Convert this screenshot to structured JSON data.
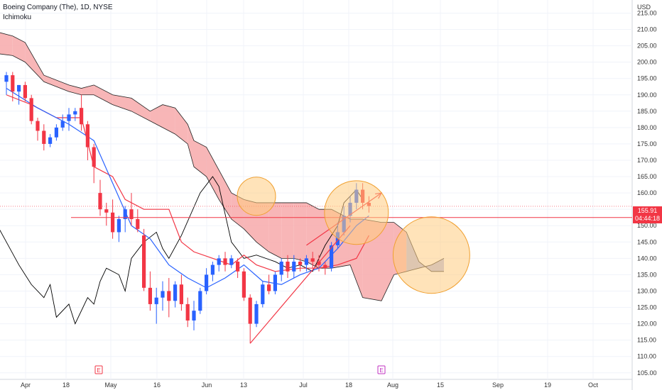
{
  "header": {
    "title": "Boeing Company (The), 1D, NYSE",
    "indicator": "Ichimoku"
  },
  "axis": {
    "currency": "USD"
  },
  "price_label": {
    "price": "155.91",
    "countdown": "04:44:18"
  },
  "earnings_marker": "E",
  "colors": {
    "up": "#2962ff",
    "down": "#f23645",
    "cloud_bear": "#f7a9aa",
    "cloud_bull": "#aab4e6",
    "conversion": "#2962ff",
    "base": "#f23645",
    "lagging": "#000000",
    "highlight": "#ffcc80",
    "highlight_stroke": "#f0a030",
    "hline": "#f23645",
    "trend": "#f23645"
  },
  "chart_data": {
    "type": "candlestick",
    "title": "Boeing Company (The), 1D, NYSE",
    "ylim": [
      103,
      219
    ],
    "y_ticks": [
      "105.00",
      "110.00",
      "115.00",
      "120.00",
      "125.00",
      "130.00",
      "135.00",
      "140.00",
      "145.00",
      "150.00",
      "155.00",
      "160.00",
      "165.00",
      "170.00",
      "175.00",
      "180.00",
      "185.00",
      "190.00",
      "195.00",
      "200.00",
      "205.00",
      "210.00",
      "215.00"
    ],
    "x_ticks": [
      "Apr",
      "18",
      "May",
      "16",
      "Jun",
      "13",
      "Jul",
      "18",
      "Aug",
      "15",
      "Sep",
      "19",
      "Oct"
    ],
    "candles": [
      [
        194,
        197,
        190,
        196
      ],
      [
        196,
        197,
        188,
        191
      ],
      [
        191,
        193,
        187,
        193
      ],
      [
        193,
        194,
        188,
        189
      ],
      [
        189,
        190,
        181,
        182
      ],
      [
        182,
        183,
        176,
        179
      ],
      [
        179,
        181,
        173,
        175
      ],
      [
        175,
        178,
        174,
        177
      ],
      [
        177,
        181,
        176,
        180
      ],
      [
        180,
        184,
        179,
        182
      ],
      [
        182,
        186,
        179,
        184
      ],
      [
        184,
        186,
        182,
        185
      ],
      [
        186,
        190,
        179,
        181
      ],
      [
        181,
        182,
        170,
        174
      ],
      [
        174,
        175,
        163,
        168
      ],
      [
        160,
        164,
        153,
        155
      ],
      [
        155,
        157,
        150,
        154
      ],
      [
        154,
        158,
        146,
        148
      ],
      [
        148,
        153,
        145,
        152
      ],
      [
        152,
        156,
        148,
        155
      ],
      [
        155,
        160,
        150,
        152
      ],
      [
        152,
        155,
        148,
        149
      ],
      [
        147,
        149,
        130,
        131
      ],
      [
        131,
        136,
        124,
        126
      ],
      [
        126,
        131,
        120,
        128
      ],
      [
        128,
        133,
        124,
        130
      ],
      [
        130,
        134,
        122,
        127
      ],
      [
        127,
        133,
        125,
        132
      ],
      [
        132,
        135,
        124,
        126
      ],
      [
        126,
        128,
        119,
        121
      ],
      [
        121,
        127,
        118,
        124
      ],
      [
        124,
        131,
        123,
        130
      ],
      [
        130,
        137,
        129,
        135
      ],
      [
        135,
        139,
        133,
        138
      ],
      [
        138,
        141,
        136,
        140
      ],
      [
        140,
        142,
        136,
        138
      ],
      [
        138,
        141,
        137,
        140
      ],
      [
        139,
        140,
        134,
        136
      ],
      [
        136,
        137,
        127,
        128
      ],
      [
        128,
        129,
        114,
        120
      ],
      [
        120,
        127,
        119,
        126
      ],
      [
        126,
        133,
        125,
        132
      ],
      [
        132,
        135,
        129,
        130
      ],
      [
        130,
        136,
        129,
        135
      ],
      [
        135,
        140,
        133,
        139
      ],
      [
        139,
        141,
        134,
        136
      ],
      [
        136,
        141,
        134,
        139
      ],
      [
        139,
        140,
        136,
        138
      ],
      [
        138,
        141,
        136,
        140
      ],
      [
        140,
        142,
        137,
        139
      ],
      [
        139,
        141,
        136,
        138
      ],
      [
        138,
        139,
        135,
        137
      ],
      [
        137,
        145,
        136,
        144
      ],
      [
        144,
        151,
        143,
        148
      ],
      [
        148,
        156,
        147,
        153
      ],
      [
        153,
        159,
        151,
        157
      ],
      [
        157,
        163,
        155,
        161
      ],
      [
        161,
        163,
        155,
        157
      ],
      [
        157,
        159,
        154,
        156
      ]
    ],
    "conversion_line": [
      [
        0,
        192
      ],
      [
        5,
        186
      ],
      [
        10,
        181
      ],
      [
        14,
        176
      ],
      [
        17,
        163
      ],
      [
        20,
        150
      ],
      [
        23,
        146
      ],
      [
        26,
        138
      ],
      [
        29,
        134
      ],
      [
        32,
        131
      ],
      [
        35,
        134
      ],
      [
        38,
        138
      ],
      [
        41,
        133
      ],
      [
        44,
        132
      ],
      [
        47,
        135
      ],
      [
        50,
        137
      ],
      [
        53,
        143
      ],
      [
        56,
        150
      ],
      [
        58,
        153
      ]
    ],
    "base_line": [
      [
        0,
        190
      ],
      [
        4,
        187
      ],
      [
        8,
        183
      ],
      [
        12,
        183
      ],
      [
        14,
        168
      ],
      [
        17,
        165
      ],
      [
        19,
        158
      ],
      [
        22,
        155
      ],
      [
        26,
        155
      ],
      [
        28,
        145
      ],
      [
        30,
        142
      ],
      [
        33,
        140
      ],
      [
        36,
        138
      ],
      [
        38,
        141
      ],
      [
        40,
        138
      ],
      [
        43,
        136
      ],
      [
        47,
        137
      ],
      [
        50,
        137
      ],
      [
        53,
        138
      ],
      [
        56,
        140
      ],
      [
        58,
        147
      ]
    ],
    "lagging_span": [
      [
        -6,
        160
      ],
      [
        -4,
        158
      ],
      [
        -2,
        152
      ],
      [
        0,
        145
      ],
      [
        2,
        138
      ],
      [
        4,
        132
      ],
      [
        6,
        128
      ],
      [
        7,
        132
      ],
      [
        8,
        122
      ],
      [
        10,
        126
      ],
      [
        11,
        120
      ],
      [
        13,
        128
      ],
      [
        14,
        126
      ],
      [
        15,
        133
      ],
      [
        16,
        137
      ],
      [
        18,
        135
      ],
      [
        19,
        130
      ],
      [
        20,
        140
      ],
      [
        22,
        145
      ],
      [
        24,
        148
      ],
      [
        25,
        143
      ],
      [
        26,
        140
      ],
      [
        28,
        147
      ],
      [
        31,
        160
      ],
      [
        33,
        165
      ],
      [
        34,
        162
      ],
      [
        36,
        145
      ],
      [
        38,
        140
      ],
      [
        40,
        141
      ],
      [
        43,
        139
      ],
      [
        45,
        137
      ],
      [
        47,
        138
      ],
      [
        49,
        136
      ],
      [
        51,
        144
      ],
      [
        53,
        150
      ],
      [
        54,
        157
      ],
      [
        56,
        161
      ],
      [
        57,
        158
      ]
    ],
    "cloud_top": [
      [
        -8,
        214
      ],
      [
        -5,
        210
      ],
      [
        -3,
        210
      ],
      [
        1,
        208
      ],
      [
        3,
        206
      ],
      [
        6,
        196
      ],
      [
        10,
        193
      ],
      [
        12,
        192
      ],
      [
        14,
        193
      ],
      [
        17,
        190
      ],
      [
        20,
        189
      ],
      [
        23,
        185
      ],
      [
        25,
        187
      ],
      [
        27,
        186
      ],
      [
        29,
        181
      ],
      [
        30,
        176
      ],
      [
        32,
        174
      ],
      [
        34,
        167
      ],
      [
        36,
        160
      ],
      [
        38,
        158
      ],
      [
        40,
        157
      ],
      [
        42,
        157
      ],
      [
        44,
        157
      ],
      [
        46,
        157
      ],
      [
        48,
        157
      ],
      [
        50,
        155
      ],
      [
        52,
        155
      ],
      [
        55,
        152
      ],
      [
        57,
        152
      ],
      [
        60,
        151
      ],
      [
        62,
        151
      ],
      [
        64,
        148
      ],
      [
        66,
        139
      ],
      [
        68,
        136
      ],
      [
        70,
        136
      ]
    ],
    "cloud_bottom": [
      [
        -8,
        208
      ],
      [
        -5,
        204
      ],
      [
        -3,
        203
      ],
      [
        1,
        202
      ],
      [
        3,
        200
      ],
      [
        6,
        194
      ],
      [
        10,
        191
      ],
      [
        12,
        190
      ],
      [
        14,
        190
      ],
      [
        17,
        187
      ],
      [
        20,
        185
      ],
      [
        23,
        182
      ],
      [
        25,
        180
      ],
      [
        27,
        178
      ],
      [
        29,
        175
      ],
      [
        30,
        168
      ],
      [
        32,
        165
      ],
      [
        34,
        158
      ],
      [
        36,
        152
      ],
      [
        38,
        149
      ],
      [
        40,
        145
      ],
      [
        42,
        142
      ],
      [
        44,
        140
      ],
      [
        46,
        140
      ],
      [
        48,
        139
      ],
      [
        50,
        137
      ],
      [
        52,
        137
      ],
      [
        55,
        138
      ],
      [
        57,
        128
      ],
      [
        60,
        127
      ],
      [
        62,
        135
      ],
      [
        64,
        136
      ],
      [
        66,
        137
      ],
      [
        68,
        138
      ],
      [
        70,
        140
      ]
    ],
    "horizontal_line": 152.5,
    "trend_line": [
      [
        39,
        114
      ],
      [
        55,
        150
      ]
    ],
    "arrow": [
      [
        48,
        144
      ],
      [
        60,
        160
      ]
    ],
    "highlights": [
      {
        "x": 40,
        "y": 159,
        "r": 3
      },
      {
        "x": 56,
        "y": 154,
        "r": 5
      },
      {
        "x": 68,
        "y": 141,
        "r": 6
      }
    ]
  }
}
